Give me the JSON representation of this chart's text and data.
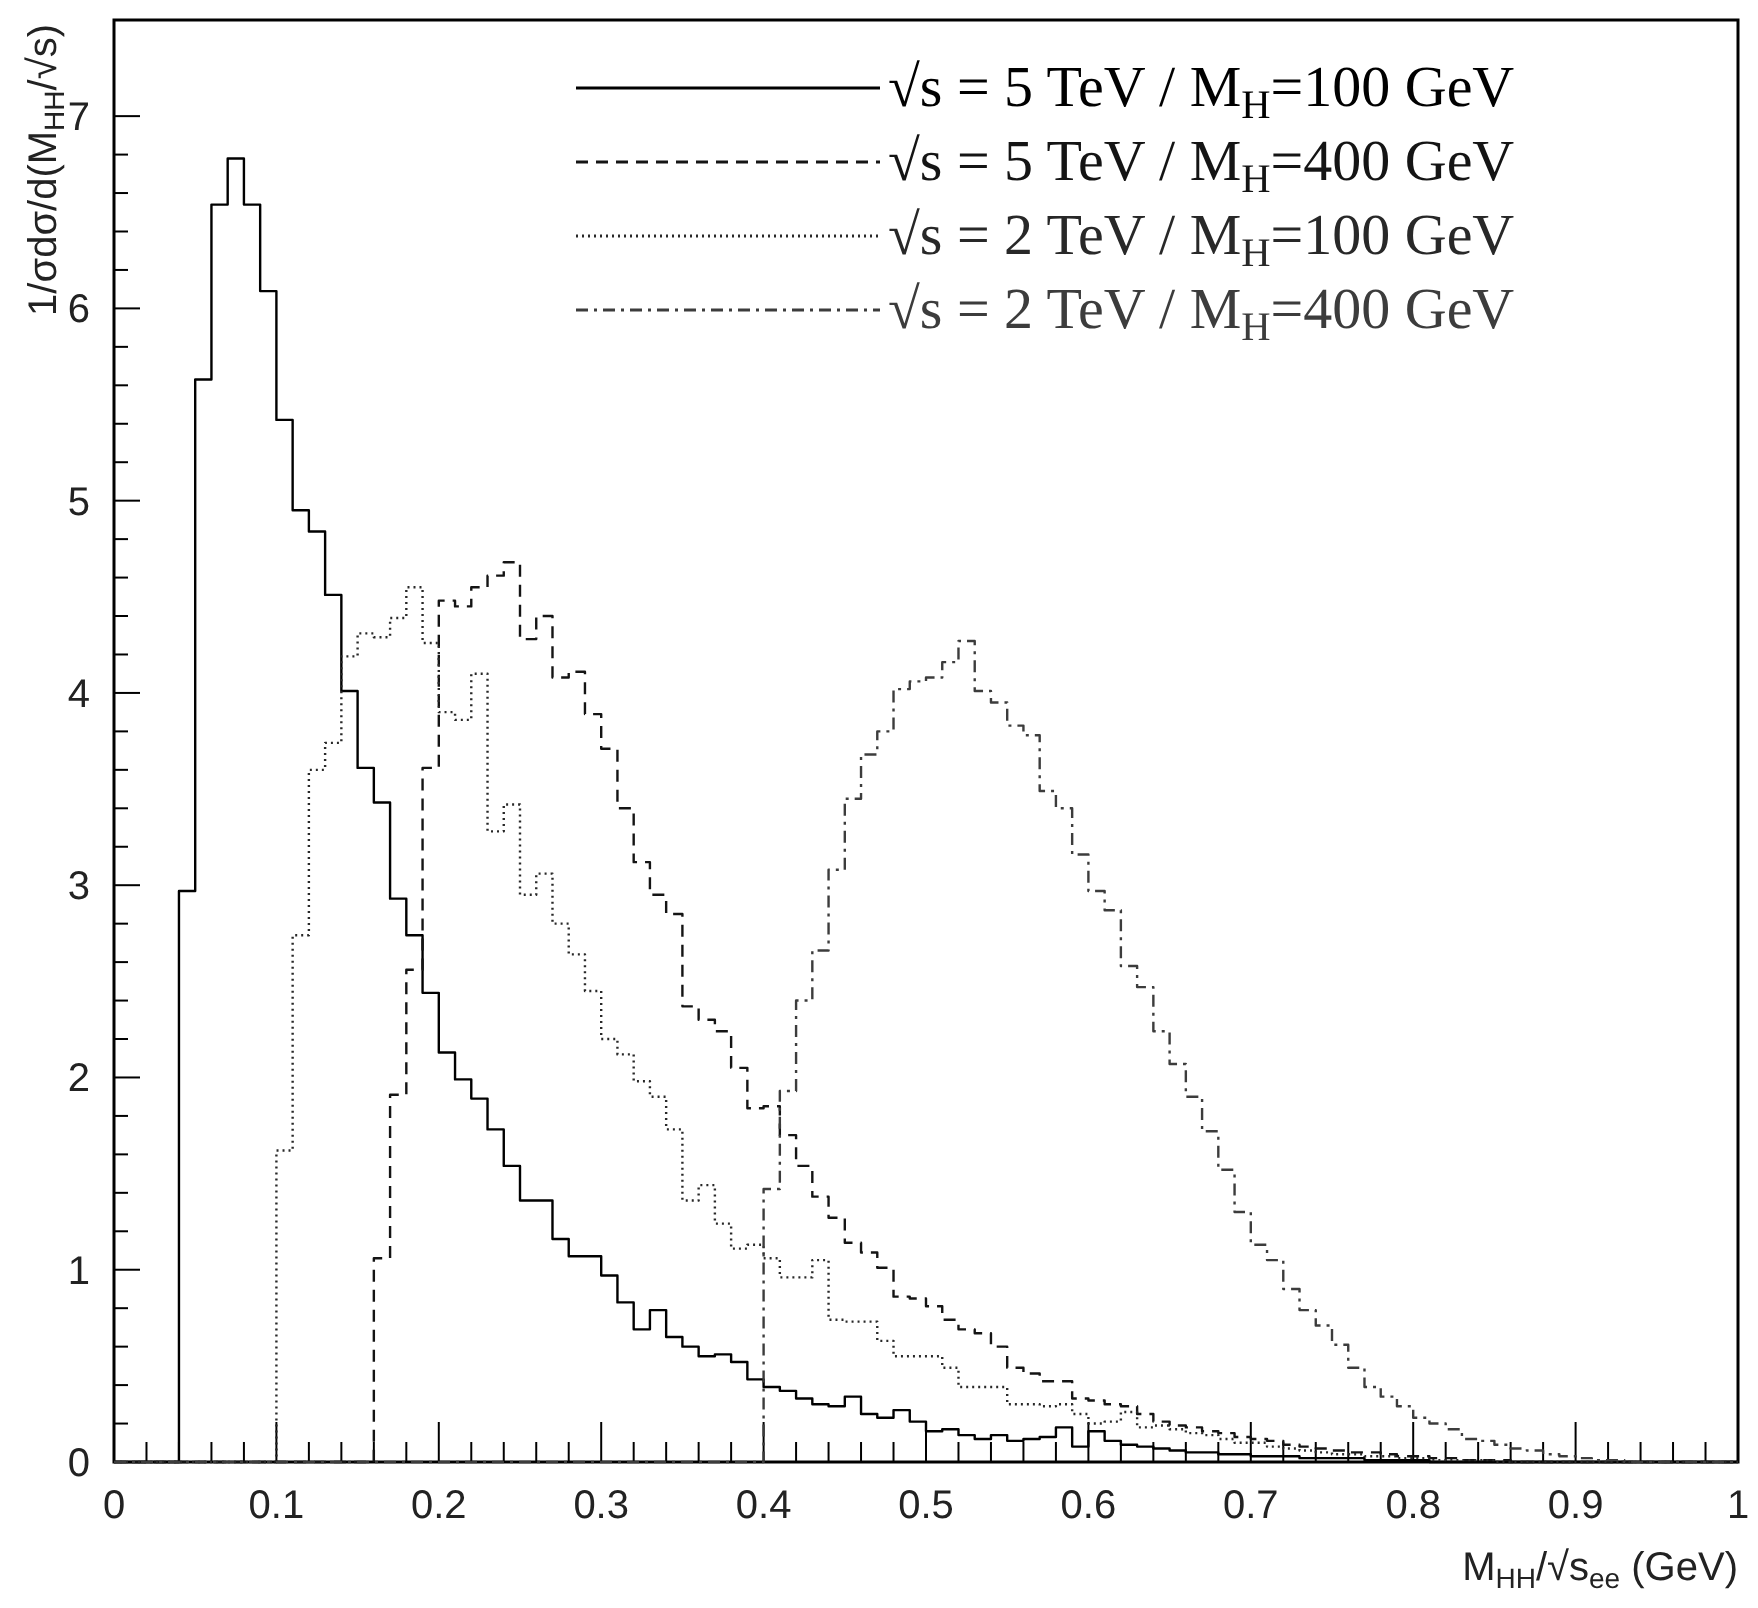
{
  "chart_data": {
    "type": "histogram",
    "xlabel": "M$_{HH}$/√s$_{ee}$ (GeV)",
    "ylabel": "1/σdσ/d(M$_{HH}$/√s)",
    "bins": [
      0,
      0.01,
      0.02,
      0.03,
      0.04,
      0.05,
      0.06,
      0.07,
      0.08,
      0.09,
      0.1,
      0.11,
      0.12,
      0.13,
      0.14,
      0.15,
      0.16,
      0.17,
      0.18,
      0.19,
      0.2,
      0.21,
      0.22,
      0.23,
      0.24,
      0.25,
      0.26,
      0.27,
      0.28,
      0.29,
      0.3,
      0.31,
      0.32,
      0.33,
      0.34,
      0.35,
      0.36,
      0.37,
      0.38,
      0.39,
      0.4,
      0.41,
      0.42,
      0.43,
      0.44,
      0.45,
      0.46,
      0.47,
      0.48,
      0.49,
      0.5,
      0.51,
      0.52,
      0.53,
      0.54,
      0.55,
      0.56,
      0.57,
      0.58,
      0.59,
      0.6,
      0.61,
      0.62,
      0.63,
      0.64,
      0.65,
      0.66,
      0.67,
      0.68,
      0.69,
      0.7,
      0.71,
      0.72,
      0.73,
      0.74,
      0.75,
      0.76,
      0.77,
      0.78,
      0.79,
      0.8,
      0.81,
      0.82,
      0.83,
      0.84,
      0.85,
      0.86,
      0.87,
      0.88,
      0.89,
      0.9,
      0.91,
      0.92,
      0.93,
      0.94,
      0.95,
      0.96,
      0.97,
      0.98,
      0.99,
      1
    ],
    "series": [
      {
        "name": "√s = 5 TeV / M$_{H}$=100 GeV",
        "color": "#000000",
        "line_style": "solid",
        "values": [
          0,
          0,
          0,
          0,
          2.97,
          5.63,
          6.54,
          6.78,
          6.54,
          6.09,
          5.42,
          4.95,
          4.84,
          4.51,
          4.01,
          3.61,
          3.43,
          2.93,
          2.74,
          2.44,
          2.13,
          1.99,
          1.89,
          1.73,
          1.54,
          1.36,
          1.36,
          1.16,
          1.07,
          1.07,
          0.97,
          0.83,
          0.69,
          0.79,
          0.65,
          0.6,
          0.55,
          0.56,
          0.52,
          0.43,
          0.39,
          0.37,
          0.33,
          0.3,
          0.29,
          0.34,
          0.25,
          0.23,
          0.27,
          0.21,
          0.16,
          0.17,
          0.14,
          0.12,
          0.14,
          0.11,
          0.12,
          0.13,
          0.18,
          0.08,
          0.16,
          0.11,
          0.09,
          0.08,
          0.07,
          0.06,
          0.05,
          0.05,
          0.04,
          0.04,
          0.03,
          0.03,
          0.03,
          0.02,
          0.02,
          0.02,
          0.02,
          0.01,
          0.01,
          0.01,
          0.01,
          0,
          0,
          0,
          0,
          0,
          0,
          0,
          0,
          0,
          0,
          0,
          0,
          0,
          0,
          0,
          0,
          0,
          0,
          0
        ]
      },
      {
        "name": "√s = 5 TeV / M$_{H}$=400 GeV",
        "color": "#141414",
        "line_style": "dashed",
        "values": [
          0,
          0,
          0,
          0,
          0,
          0,
          0,
          0,
          0,
          0,
          0,
          0,
          0,
          0,
          0,
          0,
          1.06,
          1.91,
          2.56,
          3.61,
          4.48,
          4.45,
          4.55,
          4.61,
          4.68,
          4.28,
          4.4,
          4.08,
          4.11,
          3.89,
          3.71,
          3.4,
          3.12,
          2.95,
          2.85,
          2.37,
          2.3,
          2.24,
          2.05,
          1.84,
          1.85,
          1.7,
          1.54,
          1.38,
          1.27,
          1.14,
          1.09,
          1.01,
          0.86,
          0.85,
          0.81,
          0.74,
          0.69,
          0.67,
          0.6,
          0.49,
          0.46,
          0.42,
          0.42,
          0.33,
          0.32,
          0.3,
          0.29,
          0.25,
          0.21,
          0.19,
          0.18,
          0.16,
          0.15,
          0.13,
          0.12,
          0.11,
          0.09,
          0.08,
          0.07,
          0.06,
          0.05,
          0.05,
          0.04,
          0.03,
          0.03,
          0.02,
          0.02,
          0.01,
          0.01,
          0.01,
          0,
          0,
          0,
          0,
          0,
          0,
          0,
          0,
          0,
          0,
          0,
          0,
          0,
          0
        ]
      },
      {
        "name": "√s = 2 TeV / M$_{H}$=100 GeV",
        "color": "#282828",
        "line_style": "dotted",
        "values": [
          0,
          0,
          0,
          0,
          0,
          0,
          0,
          0,
          0,
          0,
          1.62,
          2.74,
          3.6,
          3.74,
          4.19,
          4.31,
          4.29,
          4.39,
          4.55,
          4.26,
          3.9,
          3.86,
          4.1,
          3.28,
          3.42,
          2.95,
          3.06,
          2.8,
          2.64,
          2.45,
          2.2,
          2.12,
          1.98,
          1.9,
          1.73,
          1.36,
          1.44,
          1.24,
          1.11,
          1.13,
          1.06,
          0.96,
          0.96,
          1.05,
          0.74,
          0.73,
          0.73,
          0.63,
          0.55,
          0.55,
          0.55,
          0.49,
          0.39,
          0.39,
          0.39,
          0.3,
          0.3,
          0.29,
          0.3,
          0.25,
          0.2,
          0.21,
          0.26,
          0.18,
          0.19,
          0.17,
          0.15,
          0.14,
          0.12,
          0.1,
          0.1,
          0.08,
          0.07,
          0.06,
          0.05,
          0.04,
          0.04,
          0.03,
          0.03,
          0.02,
          0.02,
          0.01,
          0.01,
          0.01,
          0.01,
          0,
          0,
          0,
          0,
          0,
          0,
          0,
          0,
          0,
          0,
          0,
          0,
          0,
          0,
          0
        ]
      },
      {
        "name": "√s = 2 TeV / M$_{H}$=400 GeV",
        "color": "#3c3c3c",
        "line_style": "dashdot",
        "values": [
          0,
          0,
          0,
          0,
          0,
          0,
          0,
          0,
          0,
          0,
          0,
          0,
          0,
          0,
          0,
          0,
          0,
          0,
          0,
          0,
          0,
          0,
          0,
          0,
          0,
          0,
          0,
          0,
          0,
          0,
          0,
          0,
          0,
          0,
          0,
          0,
          0,
          0,
          0,
          0,
          1.42,
          1.93,
          2.4,
          2.66,
          3.08,
          3.45,
          3.68,
          3.8,
          4.02,
          4.06,
          4.08,
          4.16,
          4.27,
          4.01,
          3.95,
          3.83,
          3.78,
          3.49,
          3.4,
          3.16,
          2.97,
          2.87,
          2.58,
          2.47,
          2.24,
          2.07,
          1.9,
          1.72,
          1.52,
          1.3,
          1.13,
          1.05,
          0.9,
          0.79,
          0.71,
          0.61,
          0.49,
          0.39,
          0.34,
          0.29,
          0.23,
          0.2,
          0.17,
          0.12,
          0.11,
          0.09,
          0.07,
          0.06,
          0.04,
          0.03,
          0.02,
          0.01,
          0.01,
          0,
          0,
          0,
          0,
          0,
          0,
          0
        ]
      }
    ],
    "xlim": [
      0,
      1
    ],
    "ylim": [
      0,
      7.5
    ],
    "xticks": [
      0,
      0.1,
      0.2,
      0.3,
      0.4,
      0.5,
      0.6,
      0.7,
      0.8,
      0.9,
      1
    ],
    "yticks": [
      0,
      1,
      2,
      3,
      4,
      5,
      6,
      7
    ],
    "grid": false,
    "legend": "top right"
  }
}
